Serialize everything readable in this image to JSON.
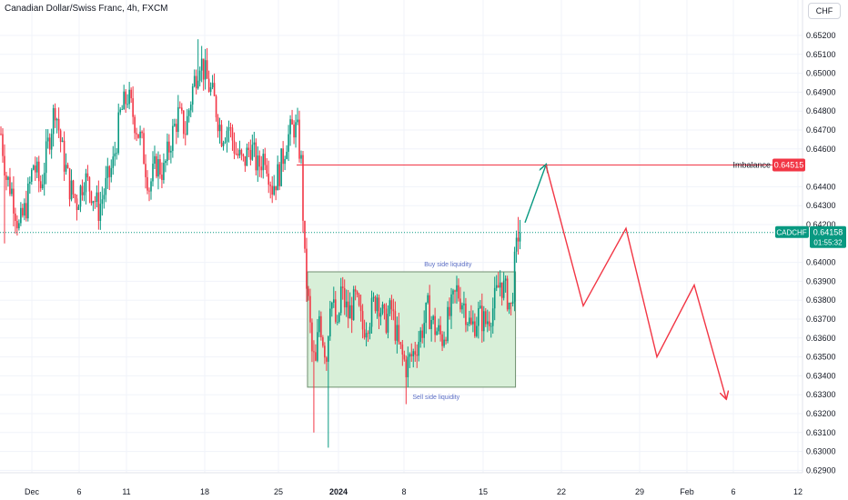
{
  "header": {
    "title": "Canadian Dollar/Swiss Franc, 4h, FXCM",
    "currency_button": "CHF"
  },
  "chart_data": {
    "type": "candlestick",
    "symbol": "CADCHF",
    "timeframe": "4h",
    "y_ticks": [
      "0.65200",
      "0.65100",
      "0.65000",
      "0.64900",
      "0.64800",
      "0.64700",
      "0.64600",
      "0.64400",
      "0.64300",
      "0.64200",
      "0.64000",
      "0.63900",
      "0.63800",
      "0.63700",
      "0.63600",
      "0.63500",
      "0.63400",
      "0.63300",
      "0.63200",
      "0.63100",
      "0.63000",
      "0.62900"
    ],
    "y_tick_values": [
      0.652,
      0.651,
      0.65,
      0.649,
      0.648,
      0.647,
      0.646,
      0.644,
      0.643,
      0.642,
      0.64,
      0.639,
      0.638,
      0.637,
      0.636,
      0.635,
      0.634,
      0.633,
      0.632,
      0.631,
      0.63,
      0.629
    ],
    "x_ticks": [
      {
        "label": "Dec",
        "bold": false
      },
      {
        "label": "6",
        "bold": false
      },
      {
        "label": "11",
        "bold": false
      },
      {
        "label": "18",
        "bold": false
      },
      {
        "label": "25",
        "bold": false
      },
      {
        "label": "2024",
        "bold": true
      },
      {
        "label": "8",
        "bold": false
      },
      {
        "label": "15",
        "bold": false
      },
      {
        "label": "22",
        "bold": false
      },
      {
        "label": "29",
        "bold": false
      },
      {
        "label": "Feb",
        "bold": false
      },
      {
        "label": "6",
        "bold": false
      },
      {
        "label": "12",
        "bold": false
      }
    ],
    "price_path": [
      {
        "bar": 0,
        "price": 0.6468
      },
      {
        "bar": 3,
        "price": 0.6445
      },
      {
        "bar": 6,
        "price": 0.6438
      },
      {
        "bar": 10,
        "price": 0.6418
      },
      {
        "bar": 14,
        "price": 0.643
      },
      {
        "bar": 18,
        "price": 0.6452
      },
      {
        "bar": 22,
        "price": 0.644
      },
      {
        "bar": 26,
        "price": 0.6462
      },
      {
        "bar": 30,
        "price": 0.6483
      },
      {
        "bar": 34,
        "price": 0.6458
      },
      {
        "bar": 38,
        "price": 0.644
      },
      {
        "bar": 42,
        "price": 0.6432
      },
      {
        "bar": 46,
        "price": 0.6445
      },
      {
        "bar": 50,
        "price": 0.6438
      },
      {
        "bar": 54,
        "price": 0.6428
      },
      {
        "bar": 58,
        "price": 0.644
      },
      {
        "bar": 62,
        "price": 0.6452
      },
      {
        "bar": 66,
        "price": 0.6478
      },
      {
        "bar": 70,
        "price": 0.6488
      },
      {
        "bar": 74,
        "price": 0.6475
      },
      {
        "bar": 78,
        "price": 0.6462
      },
      {
        "bar": 82,
        "price": 0.644
      },
      {
        "bar": 86,
        "price": 0.6452
      },
      {
        "bar": 90,
        "price": 0.6448
      },
      {
        "bar": 94,
        "price": 0.6465
      },
      {
        "bar": 98,
        "price": 0.6478
      },
      {
        "bar": 102,
        "price": 0.647
      },
      {
        "bar": 106,
        "price": 0.6492
      },
      {
        "bar": 110,
        "price": 0.6508
      },
      {
        "bar": 114,
        "price": 0.6496
      },
      {
        "bar": 118,
        "price": 0.6485
      },
      {
        "bar": 122,
        "price": 0.6468
      },
      {
        "bar": 126,
        "price": 0.6472
      },
      {
        "bar": 130,
        "price": 0.6458
      },
      {
        "bar": 134,
        "price": 0.6452
      },
      {
        "bar": 138,
        "price": 0.6462
      },
      {
        "bar": 142,
        "price": 0.645
      },
      {
        "bar": 146,
        "price": 0.6458
      },
      {
        "bar": 150,
        "price": 0.644
      },
      {
        "bar": 154,
        "price": 0.6448
      },
      {
        "bar": 158,
        "price": 0.6465
      },
      {
        "bar": 162,
        "price": 0.6472
      },
      {
        "bar": 164,
        "price": 0.6468
      },
      {
        "bar": 166,
        "price": 0.6452
      },
      {
        "bar": 168,
        "price": 0.64
      },
      {
        "bar": 170,
        "price": 0.6378
      },
      {
        "bar": 172,
        "price": 0.6352
      },
      {
        "bar": 174,
        "price": 0.6345
      },
      {
        "bar": 176,
        "price": 0.6372
      },
      {
        "bar": 178,
        "price": 0.636
      },
      {
        "bar": 180,
        "price": 0.635
      },
      {
        "bar": 182,
        "price": 0.6382
      },
      {
        "bar": 184,
        "price": 0.6375
      },
      {
        "bar": 186,
        "price": 0.6362
      },
      {
        "bar": 188,
        "price": 0.6385
      },
      {
        "bar": 192,
        "price": 0.6372
      },
      {
        "bar": 196,
        "price": 0.638
      },
      {
        "bar": 200,
        "price": 0.6365
      },
      {
        "bar": 204,
        "price": 0.6372
      },
      {
        "bar": 208,
        "price": 0.6383
      },
      {
        "bar": 212,
        "price": 0.6368
      },
      {
        "bar": 216,
        "price": 0.6375
      },
      {
        "bar": 220,
        "price": 0.6355
      },
      {
        "bar": 224,
        "price": 0.6345
      },
      {
        "bar": 228,
        "price": 0.6352
      },
      {
        "bar": 232,
        "price": 0.6362
      },
      {
        "bar": 236,
        "price": 0.6375
      },
      {
        "bar": 240,
        "price": 0.6365
      },
      {
        "bar": 244,
        "price": 0.636
      },
      {
        "bar": 248,
        "price": 0.6372
      },
      {
        "bar": 252,
        "price": 0.6385
      },
      {
        "bar": 256,
        "price": 0.6378
      },
      {
        "bar": 260,
        "price": 0.6365
      },
      {
        "bar": 264,
        "price": 0.6372
      },
      {
        "bar": 268,
        "price": 0.6368
      },
      {
        "bar": 272,
        "price": 0.6376
      },
      {
        "bar": 276,
        "price": 0.639
      },
      {
        "bar": 280,
        "price": 0.6382
      },
      {
        "bar": 282,
        "price": 0.6375
      },
      {
        "bar": 284,
        "price": 0.6398
      },
      {
        "bar": 286,
        "price": 0.6415
      },
      {
        "bar": 287,
        "price": 0.64158
      }
    ],
    "extreme_wicks": [
      {
        "bar": 2,
        "price": 0.641
      },
      {
        "bar": 109,
        "price": 0.6518
      },
      {
        "bar": 164,
        "price": 0.6478
      },
      {
        "bar": 173,
        "price": 0.631
      },
      {
        "bar": 181,
        "price": 0.6302
      },
      {
        "bar": 224,
        "price": 0.6325
      },
      {
        "bar": 286,
        "price": 0.6424
      }
    ],
    "imbalance": {
      "label": "Imbalance",
      "price": 0.64515,
      "price_label": "0.64515",
      "color": "#f23645"
    },
    "current_price": {
      "label": "CADCHF",
      "price": 0.64158,
      "price_label": "0.64158",
      "countdown": "01:55:32",
      "color": "#089981"
    },
    "zone": {
      "bar_start": 170,
      "bar_end": 285,
      "top": 0.6395,
      "bottom": 0.6334,
      "top_label": "Buy side liquidity",
      "bottom_label": "Sell side liquidity",
      "fill": "#d8efd8",
      "stroke": "#6f8f6f"
    },
    "projection": {
      "up_arrow": {
        "from_price": 0.6421,
        "to_price": 0.64515,
        "color": "#089981"
      },
      "zigzag": [
        {
          "date": "Jan 20",
          "price": 0.64515
        },
        {
          "date": "Jan 25",
          "price": 0.6377
        },
        {
          "date": "Jan 28",
          "price": 0.6418
        },
        {
          "date": "Feb 1",
          "price": 0.635
        },
        {
          "date": "Feb 4",
          "price": 0.6388
        },
        {
          "date": "Feb 6",
          "price": 0.6328
        }
      ],
      "color": "#f23645"
    },
    "colors": {
      "up": "#089981",
      "down": "#f23645",
      "grid": "#f0f3fa",
      "axis_text": "#131722"
    }
  }
}
